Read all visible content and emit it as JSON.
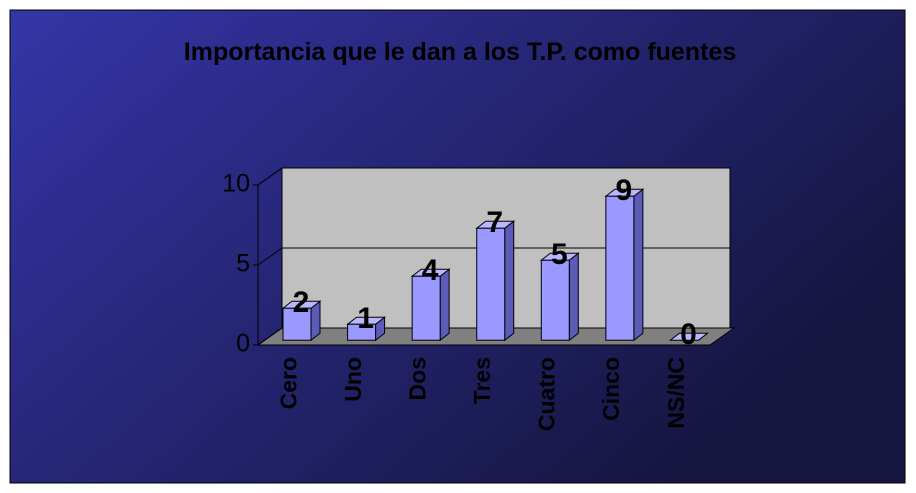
{
  "chart_data": {
    "type": "bar3d",
    "title": "Importancia que le dan a los T.P. como fuentes",
    "categories": [
      "Cero",
      "Uno",
      "Dos",
      "Tres",
      "Cuatro",
      "Cinco",
      "NS/NC"
    ],
    "values": [
      2,
      1,
      4,
      7,
      5,
      9,
      0
    ],
    "color": "#9999ff",
    "ylim": [
      0,
      10
    ],
    "yticks": [
      0,
      5,
      10
    ],
    "grid": true
  }
}
